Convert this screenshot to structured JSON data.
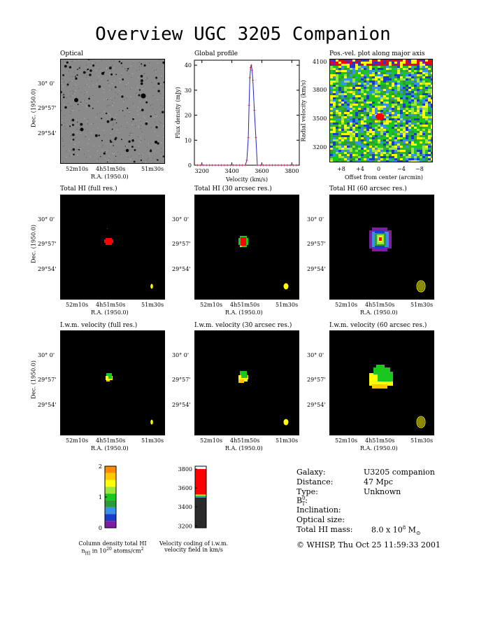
{
  "title": "Overview UGC 3205 Companion",
  "panels": {
    "optical": "Optical",
    "global_profile": "Global profile",
    "pv": "Pos.-vel. plot along major axis",
    "total_full": "Total HI (full res.)",
    "total_30": "Total HI (30 arcsec res.)",
    "total_60": "Total HI (60 arcsec res.)",
    "iwm_full": "I.w.m. velocity (full res.)",
    "iwm_30": "I.w.m. velocity (30 arcsec res.)",
    "iwm_60": "I.w.m. velocity (60 arcsec res.)"
  },
  "sky_axes": {
    "ylabel": "Dec. (1950.0)",
    "xlabel": "R.A. (1950.0)",
    "dec_ticks": [
      "30° 0'",
      "29°57'",
      "29°54'"
    ],
    "ra_ticks": [
      "52m10s",
      "4h51m50s",
      "51m30s"
    ]
  },
  "pv_axes": {
    "ylabel": "Radial velocity (km/s)",
    "xlabel": "Offset from center (arcmin)",
    "yticks": [
      "4100",
      "3800",
      "3500",
      "3200"
    ],
    "xticks": [
      "+8",
      "+4",
      "0",
      "−4",
      "−8"
    ]
  },
  "chart_data": [
    {
      "type": "line",
      "title": "Global profile",
      "xlabel": "Velocity (km/s)",
      "ylabel": "Flux density (mJy)",
      "xlim": [
        3150,
        3850
      ],
      "ylim": [
        0,
        42
      ],
      "xticks": [
        3200,
        3400,
        3600,
        3800
      ],
      "yticks": [
        0,
        10,
        20,
        30,
        40
      ],
      "x": [
        3170,
        3190,
        3210,
        3230,
        3250,
        3270,
        3290,
        3310,
        3330,
        3350,
        3370,
        3390,
        3410,
        3430,
        3450,
        3470,
        3490,
        3500,
        3510,
        3515,
        3520,
        3525,
        3530,
        3535,
        3540,
        3550,
        3560,
        3570,
        3590,
        3610,
        3630,
        3650,
        3670,
        3690,
        3710,
        3730,
        3750,
        3770,
        3790,
        3810,
        3830
      ],
      "y": [
        0,
        0,
        0,
        0,
        0,
        0,
        0,
        0,
        0,
        0,
        0,
        0,
        0,
        0,
        0,
        0,
        0,
        2,
        11,
        24,
        35,
        39,
        40,
        38,
        34,
        22,
        11,
        0,
        0,
        0,
        0,
        0,
        0,
        0,
        0,
        0,
        0,
        0,
        0,
        0,
        0
      ]
    },
    {
      "type": "heatmap",
      "title": "Column density total HI",
      "ylim": [
        0,
        2
      ],
      "yticks": [
        0,
        1,
        2
      ],
      "colors": [
        "#7b1fa2",
        "#1a3cc8",
        "#3a8fe8",
        "#2e9b3a",
        "#19c81e",
        "#9be83a",
        "#ffff00",
        "#ffc800",
        "#ff8c00"
      ]
    },
    {
      "type": "heatmap",
      "title": "Velocity coding of i.w.m. velocity field in km/s",
      "ylim": [
        3180,
        3830
      ],
      "yticks": [
        3200,
        3400,
        3600,
        3800
      ],
      "bands": [
        {
          "from": 3180,
          "to": 3500,
          "color": "#2a2a2a"
        },
        {
          "from": 3500,
          "to": 3510,
          "color": "#3a8fe8"
        },
        {
          "from": 3510,
          "to": 3520,
          "color": "#19c81e"
        },
        {
          "from": 3520,
          "to": 3530,
          "color": "#ffff00"
        },
        {
          "from": 3530,
          "to": 3800,
          "color": "#ff0000"
        }
      ]
    }
  ],
  "cbar_caption_1": "Column density total HI",
  "cbar_caption_1b": "n",
  "cbar_caption_1c": "HI",
  "cbar_caption_1d": " in 10",
  "cbar_caption_1e": "20",
  "cbar_caption_1f": " atoms/cm",
  "cbar_caption_1g": "2",
  "cbar_caption_2": "Velocity coding of i.w.m.",
  "cbar_caption_2b": "velocity field in km/s",
  "info": {
    "galaxy_label": "Galaxy:",
    "galaxy_value": "U3205 companion",
    "distance_label": "Distance:",
    "distance_value": "47 Mpc",
    "type_label": "Type:",
    "type_value": "Unknown",
    "bt_label": "B",
    "bt_sup": "0",
    "bt_sub": "T",
    "bt_colon": ":",
    "incl_label": "Inclination:",
    "optsize_label": "Optical size:",
    "mass_label": "Total HI mass:",
    "mass_value": "8.0 x 10",
    "mass_exp": "8",
    "mass_unit": " M",
    "mass_sun": "⊙",
    "credit": "© WHISP, Thu Oct 25 11:59:33 2001"
  },
  "colors": {
    "profile_line": "#2222cc",
    "profile_marker": "#cc2222",
    "blob_red": "#ff0000",
    "beam": "#ffff00"
  }
}
